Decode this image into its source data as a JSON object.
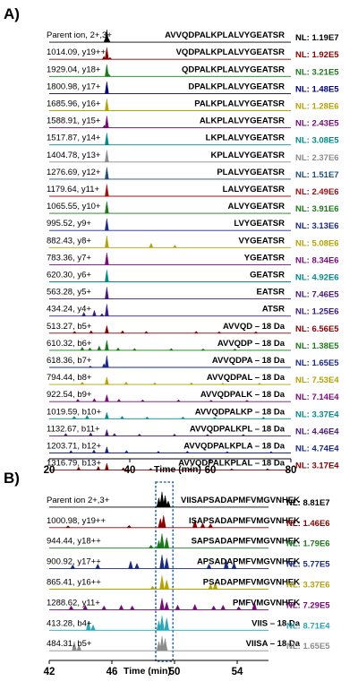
{
  "chart_data": [
    {
      "type": "line",
      "panel_label": "A)",
      "xlabel": "Time (min)",
      "xlim": [
        20,
        80
      ],
      "x_ticks": [
        "20",
        "40",
        "60",
        "80"
      ],
      "traces": [
        {
          "ion": "Parent ion, 2+,3+",
          "sequence": "AVVQDPALKPLALVYGEATSR",
          "nl": "NL: 1.19E7",
          "color": "#000000",
          "peaks": [
            [
              34.3,
              1.0
            ],
            [
              34.0,
              0.35
            ],
            [
              34.7,
              0.3
            ]
          ]
        },
        {
          "ion": "1014.09, y19++",
          "sequence": "VQDPALKPLALVYGEATSR",
          "nl": "NL: 1.92E5",
          "color": "#8b0000",
          "peaks": [
            [
              34.3,
              0.95
            ],
            [
              33.6,
              0.25
            ],
            [
              35.1,
              0.15
            ]
          ]
        },
        {
          "ion": "1929.04, y18+",
          "sequence": "QDPALKPLALVYGEATSR",
          "nl": "NL: 3.21E5",
          "color": "#1a7a1a",
          "peaks": [
            [
              34.3,
              0.95
            ],
            [
              34.8,
              0.2
            ]
          ]
        },
        {
          "ion": "1800.98, y17+",
          "sequence": "DPALKPLALVYGEATSR",
          "nl": "NL: 1.48E5",
          "color": "#000080",
          "peaks": [
            [
              34.3,
              0.95
            ]
          ]
        },
        {
          "ion": "1685.96, y16+",
          "sequence": "PALKPLALVYGEATSR",
          "nl": "NL: 1.28E6",
          "color": "#b5a300",
          "peaks": [
            [
              34.3,
              0.95
            ]
          ]
        },
        {
          "ion": "1588.91, y15+",
          "sequence": "ALKPLALVYGEATSR",
          "nl": "NL: 2.43E5",
          "color": "#7a0a7a",
          "peaks": [
            [
              34.3,
              0.95
            ],
            [
              33.7,
              0.2
            ]
          ]
        },
        {
          "ion": "1517.87, y14+",
          "sequence": "LKPLALVYGEATSR",
          "nl": "NL: 3.08E5",
          "color": "#008b8b",
          "peaks": [
            [
              34.3,
              0.95
            ]
          ]
        },
        {
          "ion": "1404.78, y13+",
          "sequence": "KPLALVYGEATSR",
          "nl": "NL: 2.37E6",
          "color": "#8c8c8c",
          "peaks": [
            [
              34.3,
              0.95
            ]
          ]
        },
        {
          "ion": "1276.69, y12+",
          "sequence": "PLALVYGEATSR",
          "nl": "NL: 1.51E7",
          "color": "#1f4e79",
          "peaks": [
            [
              34.3,
              0.95
            ]
          ]
        },
        {
          "ion": "1179.64, y11+",
          "sequence": "LALVYGEATSR",
          "nl": "NL: 2.49E6",
          "color": "#a01010",
          "peaks": [
            [
              34.3,
              0.95
            ]
          ]
        },
        {
          "ion": "1065.55, y10+",
          "sequence": "ALVYGEATSR",
          "nl": "NL: 3.91E6",
          "color": "#1a7a1a",
          "peaks": [
            [
              34.3,
              0.95
            ]
          ]
        },
        {
          "ion": "995.52, y9+",
          "sequence": "LVYGEATSR",
          "nl": "NL: 3.13E6",
          "color": "#1a2a8c",
          "peaks": [
            [
              34.3,
              0.95
            ]
          ]
        },
        {
          "ion": "882.43, y8+",
          "sequence": "VYGEATSR",
          "nl": "NL: 5.08E6",
          "color": "#b5a300",
          "peaks": [
            [
              34.3,
              0.95
            ],
            [
              45.3,
              0.35
            ],
            [
              51.2,
              0.2
            ]
          ]
        },
        {
          "ion": "783.36, y7+",
          "sequence": "YGEATSR",
          "nl": "NL: 8.34E6",
          "color": "#7a0a7a",
          "peaks": [
            [
              34.3,
              0.95
            ]
          ]
        },
        {
          "ion": "620.30, y6+",
          "sequence": "GEATSR",
          "nl": "NL: 4.92E6",
          "color": "#008b8b",
          "peaks": [
            [
              34.3,
              0.95
            ]
          ]
        },
        {
          "ion": "563.28, y5+",
          "sequence": "EATSR",
          "nl": "NL: 7.46E5",
          "color": "#4a1a7a",
          "peaks": [
            [
              34.3,
              0.95
            ]
          ]
        },
        {
          "ion": "434.24, y4+",
          "sequence": "ATSR",
          "nl": "NL: 1.25E6",
          "color": "#3a1a8a",
          "peaks": [
            [
              34.3,
              0.95
            ],
            [
              31.2,
              0.45
            ],
            [
              28.6,
              0.3
            ],
            [
              33.1,
              0.2
            ]
          ]
        },
        {
          "ion": "513.27, b5+",
          "sequence": "AVVQD – 18 Da",
          "nl": "NL: 6.56E5",
          "color": "#8b0000",
          "peaks": [
            [
              34.3,
              0.6
            ],
            [
              30.4,
              0.2
            ],
            [
              26.3,
              0.15
            ],
            [
              38.2,
              0.2
            ],
            [
              44.1,
              0.15
            ],
            [
              56.5,
              0.15
            ],
            [
              62.2,
              0.12
            ],
            [
              71.3,
              0.12
            ]
          ]
        },
        {
          "ion": "610.32, b6+",
          "sequence": "AVVQDP – 18 Da",
          "nl": "NL: 1.38E5",
          "color": "#1a7a1a",
          "peaks": [
            [
              34.3,
              0.8
            ],
            [
              28.2,
              0.25
            ],
            [
              30.1,
              0.2
            ],
            [
              32.4,
              0.35
            ],
            [
              37.1,
              0.2
            ],
            [
              41.2,
              0.15
            ],
            [
              50.3,
              0.15
            ],
            [
              58.2,
              0.12
            ],
            [
              66.1,
              0.12
            ]
          ]
        },
        {
          "ion": "618.36, b7+",
          "sequence": "AVVQDPA – 18 Da",
          "nl": "NL: 1.65E5",
          "color": "#1a2a8c",
          "peaks": [
            [
              34.3,
              0.95
            ],
            [
              33.6,
              0.3
            ],
            [
              30.2,
              0.12
            ]
          ]
        },
        {
          "ion": "794.44, b8+",
          "sequence": "AVVQDPAL – 18 Da",
          "nl": "NL: 7.53E4",
          "color": "#b5a300",
          "peaks": [
            [
              34.3,
              0.6
            ],
            [
              28.2,
              0.2
            ],
            [
              39.1,
              0.2
            ],
            [
              46.2,
              0.15
            ],
            [
              55.3,
              0.15
            ],
            [
              63.1,
              0.12
            ],
            [
              72.2,
              0.12
            ]
          ]
        },
        {
          "ion": "922.54, b9+",
          "sequence": "AVVQDPALK – 18 Da",
          "nl": "NL: 7.14E4",
          "color": "#7a0a7a",
          "peaks": [
            [
              34.3,
              0.55
            ],
            [
              27.1,
              0.2
            ],
            [
              31.2,
              0.25
            ],
            [
              37.3,
              0.2
            ],
            [
              43.2,
              0.15
            ],
            [
              52.1,
              0.15
            ],
            [
              60.2,
              0.12
            ],
            [
              69.1,
              0.12
            ]
          ]
        },
        {
          "ion": "1019.59, b10+",
          "sequence": "AVVQDPALKP – 18 Da",
          "nl": "NL: 3.37E4",
          "color": "#008b8b",
          "peaks": [
            [
              34.3,
              0.5
            ],
            [
              26.2,
              0.2
            ],
            [
              29.4,
              0.25
            ],
            [
              38.1,
              0.2
            ],
            [
              44.3,
              0.15
            ],
            [
              53.2,
              0.15
            ],
            [
              61.1,
              0.12
            ],
            [
              73.2,
              0.12
            ]
          ]
        },
        {
          "ion": "1132.67, b11+",
          "sequence": "AVVQDPALKPL – 18 Da",
          "nl": "NL: 4.46E4",
          "color": "#4a1a7a",
          "peaks": [
            [
              34.3,
              0.5
            ],
            [
              24.1,
              0.2
            ],
            [
              30.3,
              0.25
            ],
            [
              36.2,
              0.2
            ],
            [
              42.4,
              0.15
            ],
            [
              51.1,
              0.15
            ],
            [
              59.3,
              0.12
            ],
            [
              68.2,
              0.12
            ]
          ]
        },
        {
          "ion": "1203.71, b12+",
          "sequence": "AVVQDPALKPLA – 18 Da",
          "nl": "NL: 4.74E4",
          "color": "#1a2a8c",
          "peaks": [
            [
              34.3,
              0.5
            ],
            [
              25.4,
              0.2
            ],
            [
              31.1,
              0.25
            ],
            [
              39.2,
              0.2
            ],
            [
              47.1,
              0.15
            ],
            [
              54.3,
              0.15
            ],
            [
              64.2,
              0.12
            ],
            [
              75.1,
              0.12
            ]
          ]
        },
        {
          "ion": "1316.79, b13+",
          "sequence": "AVVQDPALKPLAL – 18 Da",
          "nl": "NL: 3.17E4",
          "color": "#8b0000",
          "peaks": [
            [
              34.3,
              0.55
            ],
            [
              27.3,
              0.25
            ],
            [
              32.2,
              0.3
            ],
            [
              38.4,
              0.2
            ],
            [
              45.2,
              0.15
            ],
            [
              55.1,
              0.15
            ],
            [
              65.3,
              0.12
            ],
            [
              74.2,
              0.12
            ]
          ]
        }
      ]
    },
    {
      "type": "line",
      "panel_label": "B)",
      "xlabel": "Time (min)",
      "xlim": [
        42,
        56
      ],
      "x_ticks": [
        "42",
        "46",
        "50",
        "54"
      ],
      "highlight_range": [
        48.8,
        49.9
      ],
      "traces": [
        {
          "ion": "Parent ion 2+,3+",
          "sequence": "VIISAPSADAPMFVMGVNHEK",
          "nl": "NL: 8.81E7",
          "color": "#000000",
          "peaks": [
            [
              49.2,
              1.0
            ],
            [
              49.4,
              0.75
            ],
            [
              49.0,
              0.6
            ],
            [
              49.6,
              0.4
            ]
          ]
        },
        {
          "ion": "1000.98, y19++",
          "sequence": "ISAPSADAPMFVMGVNHEK",
          "nl": "NL: 1.46E6",
          "color": "#8b0000",
          "peaks": [
            [
              49.3,
              0.8
            ],
            [
              49.1,
              0.6
            ],
            [
              51.3,
              0.5
            ],
            [
              51.8,
              0.3
            ],
            [
              52.3,
              0.25
            ],
            [
              43.2,
              0.12
            ],
            [
              47.1,
              0.15
            ]
          ]
        },
        {
          "ion": "944.44, y18++",
          "sequence": "SAPSADAPMFVMGVNHEK",
          "nl": "NL: 1.79E6",
          "color": "#1a7a1a",
          "peaks": [
            [
              49.2,
              0.95
            ],
            [
              49.5,
              0.7
            ],
            [
              49.0,
              0.5
            ],
            [
              48.5,
              0.2
            ]
          ]
        },
        {
          "ion": "900.92, y17++",
          "sequence": "APSADAPMFVMGVNHEK",
          "nl": "NL: 5.77E5",
          "color": "#1a2a8c",
          "peaks": [
            [
              49.2,
              0.9
            ],
            [
              49.5,
              0.7
            ],
            [
              47.2,
              0.5
            ],
            [
              47.6,
              0.35
            ],
            [
              45.1,
              0.3
            ],
            [
              43.5,
              0.25
            ],
            [
              53.3,
              0.6
            ],
            [
              53.8,
              0.4
            ],
            [
              52.2,
              0.3
            ]
          ]
        },
        {
          "ion": "865.41, y16++",
          "sequence": "PSADAPMFVMGVNHEK",
          "nl": "NL: 3.37E6",
          "color": "#b5a300",
          "peaks": [
            [
              49.2,
              0.9
            ],
            [
              49.5,
              0.6
            ],
            [
              52.6,
              0.45
            ],
            [
              52.3,
              0.3
            ],
            [
              48.6,
              0.2
            ]
          ]
        },
        {
          "ion": "1288.62, y11+",
          "sequence": "PMFVMGVNHEK",
          "nl": "NL: 7.29E5",
          "color": "#7a0a7a",
          "peaks": [
            [
              49.2,
              0.75
            ],
            [
              49.5,
              0.5
            ],
            [
              50.2,
              0.3
            ],
            [
              51.3,
              0.35
            ],
            [
              52.5,
              0.25
            ],
            [
              53.1,
              0.3
            ],
            [
              54.1,
              0.2
            ],
            [
              55.1,
              0.5
            ],
            [
              43.4,
              0.25
            ],
            [
              44.3,
              0.3
            ],
            [
              45.5,
              0.25
            ],
            [
              46.6,
              0.3
            ],
            [
              47.3,
              0.25
            ]
          ]
        },
        {
          "ion": "413.28, b4+",
          "sequence": "VIIS – 18 Da",
          "nl": "NL: 8.71E4",
          "color": "#2aa7b8",
          "peaks": [
            [
              49.2,
              0.95
            ],
            [
              49.5,
              0.8
            ],
            [
              49.0,
              0.6
            ],
            [
              44.5,
              0.6
            ],
            [
              44.8,
              0.35
            ]
          ]
        },
        {
          "ion": "484.31, b5+",
          "sequence": "VIISA – 18 Da",
          "nl": "NL: 1.65E5",
          "color": "#8c8c8c",
          "peaks": [
            [
              49.2,
              0.95
            ],
            [
              49.4,
              0.8
            ],
            [
              49.0,
              0.6
            ],
            [
              43.6,
              0.6
            ],
            [
              43.9,
              0.4
            ]
          ]
        }
      ]
    }
  ]
}
